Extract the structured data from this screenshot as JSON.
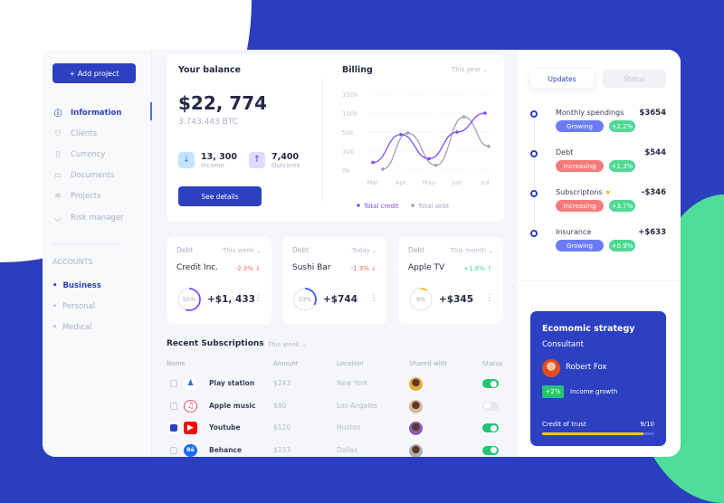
{
  "sidebar": {
    "add_project": "+ Add project",
    "items": [
      {
        "label": "Information",
        "icon": "info-icon",
        "active": true
      },
      {
        "label": "Clients",
        "icon": "user-check-icon"
      },
      {
        "label": "Currency",
        "icon": "file-icon"
      },
      {
        "label": "Documents",
        "icon": "folder-icon"
      },
      {
        "label": "Projects",
        "icon": "layers-icon"
      },
      {
        "label": "Risk manager",
        "icon": "shield-icon"
      }
    ],
    "accounts_title": "ACCOUNTS",
    "accounts": [
      {
        "label": "Business",
        "active": true
      },
      {
        "label": "Personal"
      },
      {
        "label": "Medical"
      }
    ]
  },
  "balance": {
    "title": "Your balance",
    "amount": "$22, 774",
    "btc": "3.743.443 BTC",
    "income_value": "13, 300",
    "income_label": "Income",
    "outcome_value": "7,400",
    "outcome_label": "Outcome",
    "button": "See details"
  },
  "billing": {
    "title": "Billing",
    "period": "This year"
  },
  "chart_data": {
    "type": "line",
    "title": "Billing",
    "categories": [
      "Mar",
      "Apr",
      "May",
      "Jun",
      "Jul"
    ],
    "y_ticks": [
      "0k",
      "10k",
      "50k",
      "100k",
      "150k"
    ],
    "y_tick_values": [
      0,
      10000,
      50000,
      100000,
      150000
    ],
    "grid": true,
    "legend_position": "bottom",
    "series": [
      {
        "name": "Total credit",
        "color": "#7c4dff",
        "values": [
          4000,
          45000,
          6000,
          50000,
          100000
        ]
      },
      {
        "name": "Total debt",
        "color": "#9aa3b8",
        "values": [
          500,
          48000,
          2500,
          90000,
          20000
        ]
      }
    ]
  },
  "debts": [
    {
      "label": "Debt",
      "period": "This week",
      "name": "Credit Inc.",
      "change": "-2.3%",
      "dir": "down",
      "percent": 55,
      "percent_label": "55%",
      "amount": "+$1, 433",
      "color": "#7c4dff"
    },
    {
      "label": "Debt",
      "period": "Today",
      "name": "Sushi Bar",
      "change": "-1.3%",
      "dir": "down",
      "percent": 33,
      "percent_label": "33%",
      "amount": "+$744",
      "color": "#3d5afe"
    },
    {
      "label": "Debt",
      "period": "This month",
      "name": "Apple TV",
      "change": "+1.8%",
      "dir": "up",
      "percent": 9,
      "percent_label": "9%",
      "amount": "+$345",
      "color": "#f5b400"
    }
  ],
  "subscriptions": {
    "title": "Recent Subscriptions",
    "period": "This week",
    "headers": [
      "Name",
      "Amount",
      "Location",
      "Shared with",
      "Status"
    ],
    "rows": [
      {
        "name": "Play station",
        "icon": "playstation-icon",
        "amount": "$243",
        "location": "New York",
        "checked": false,
        "status": true
      },
      {
        "name": "Apple music",
        "icon": "apple-music-icon",
        "amount": "$80",
        "location": "Los-Angeles",
        "checked": false,
        "status": false
      },
      {
        "name": "Youtube",
        "icon": "youtube-icon",
        "amount": "$120",
        "location": "Huston",
        "checked": true,
        "status": true
      },
      {
        "name": "Behance",
        "icon": "behance-icon",
        "amount": "$153",
        "location": "Dallas",
        "checked": false,
        "status": true
      }
    ]
  },
  "updates": {
    "tabs": [
      "Updates",
      "Status"
    ],
    "items": [
      {
        "title": "Monthly spendings",
        "value": "$3654",
        "badge": "Growing",
        "change": "+2,2%"
      },
      {
        "title": "Debt",
        "value": "$544",
        "badge": "Increasing",
        "change": "+1,3%"
      },
      {
        "title": "Subscriptons",
        "value": "-$346",
        "badge": "Increasing",
        "change": "+3,7%",
        "star": true
      },
      {
        "title": "Insurance",
        "value": "+$633",
        "badge": "Growing",
        "change": "+0,9%"
      }
    ]
  },
  "strategy": {
    "title": "Ecomomic strategy",
    "subtitle": "Consultant",
    "person": "Robert Fox",
    "growth_badge": "+2%",
    "growth_label": "Income growth",
    "trust_label": "Credit of trust",
    "trust_value": "9/10",
    "trust_fraction": 0.9
  },
  "colors": {
    "brand": "#2d40c2",
    "growing": "#6b7cf3",
    "increasing": "#f47b7b",
    "positive": "#4fd995",
    "negative": "#f46a6a"
  }
}
